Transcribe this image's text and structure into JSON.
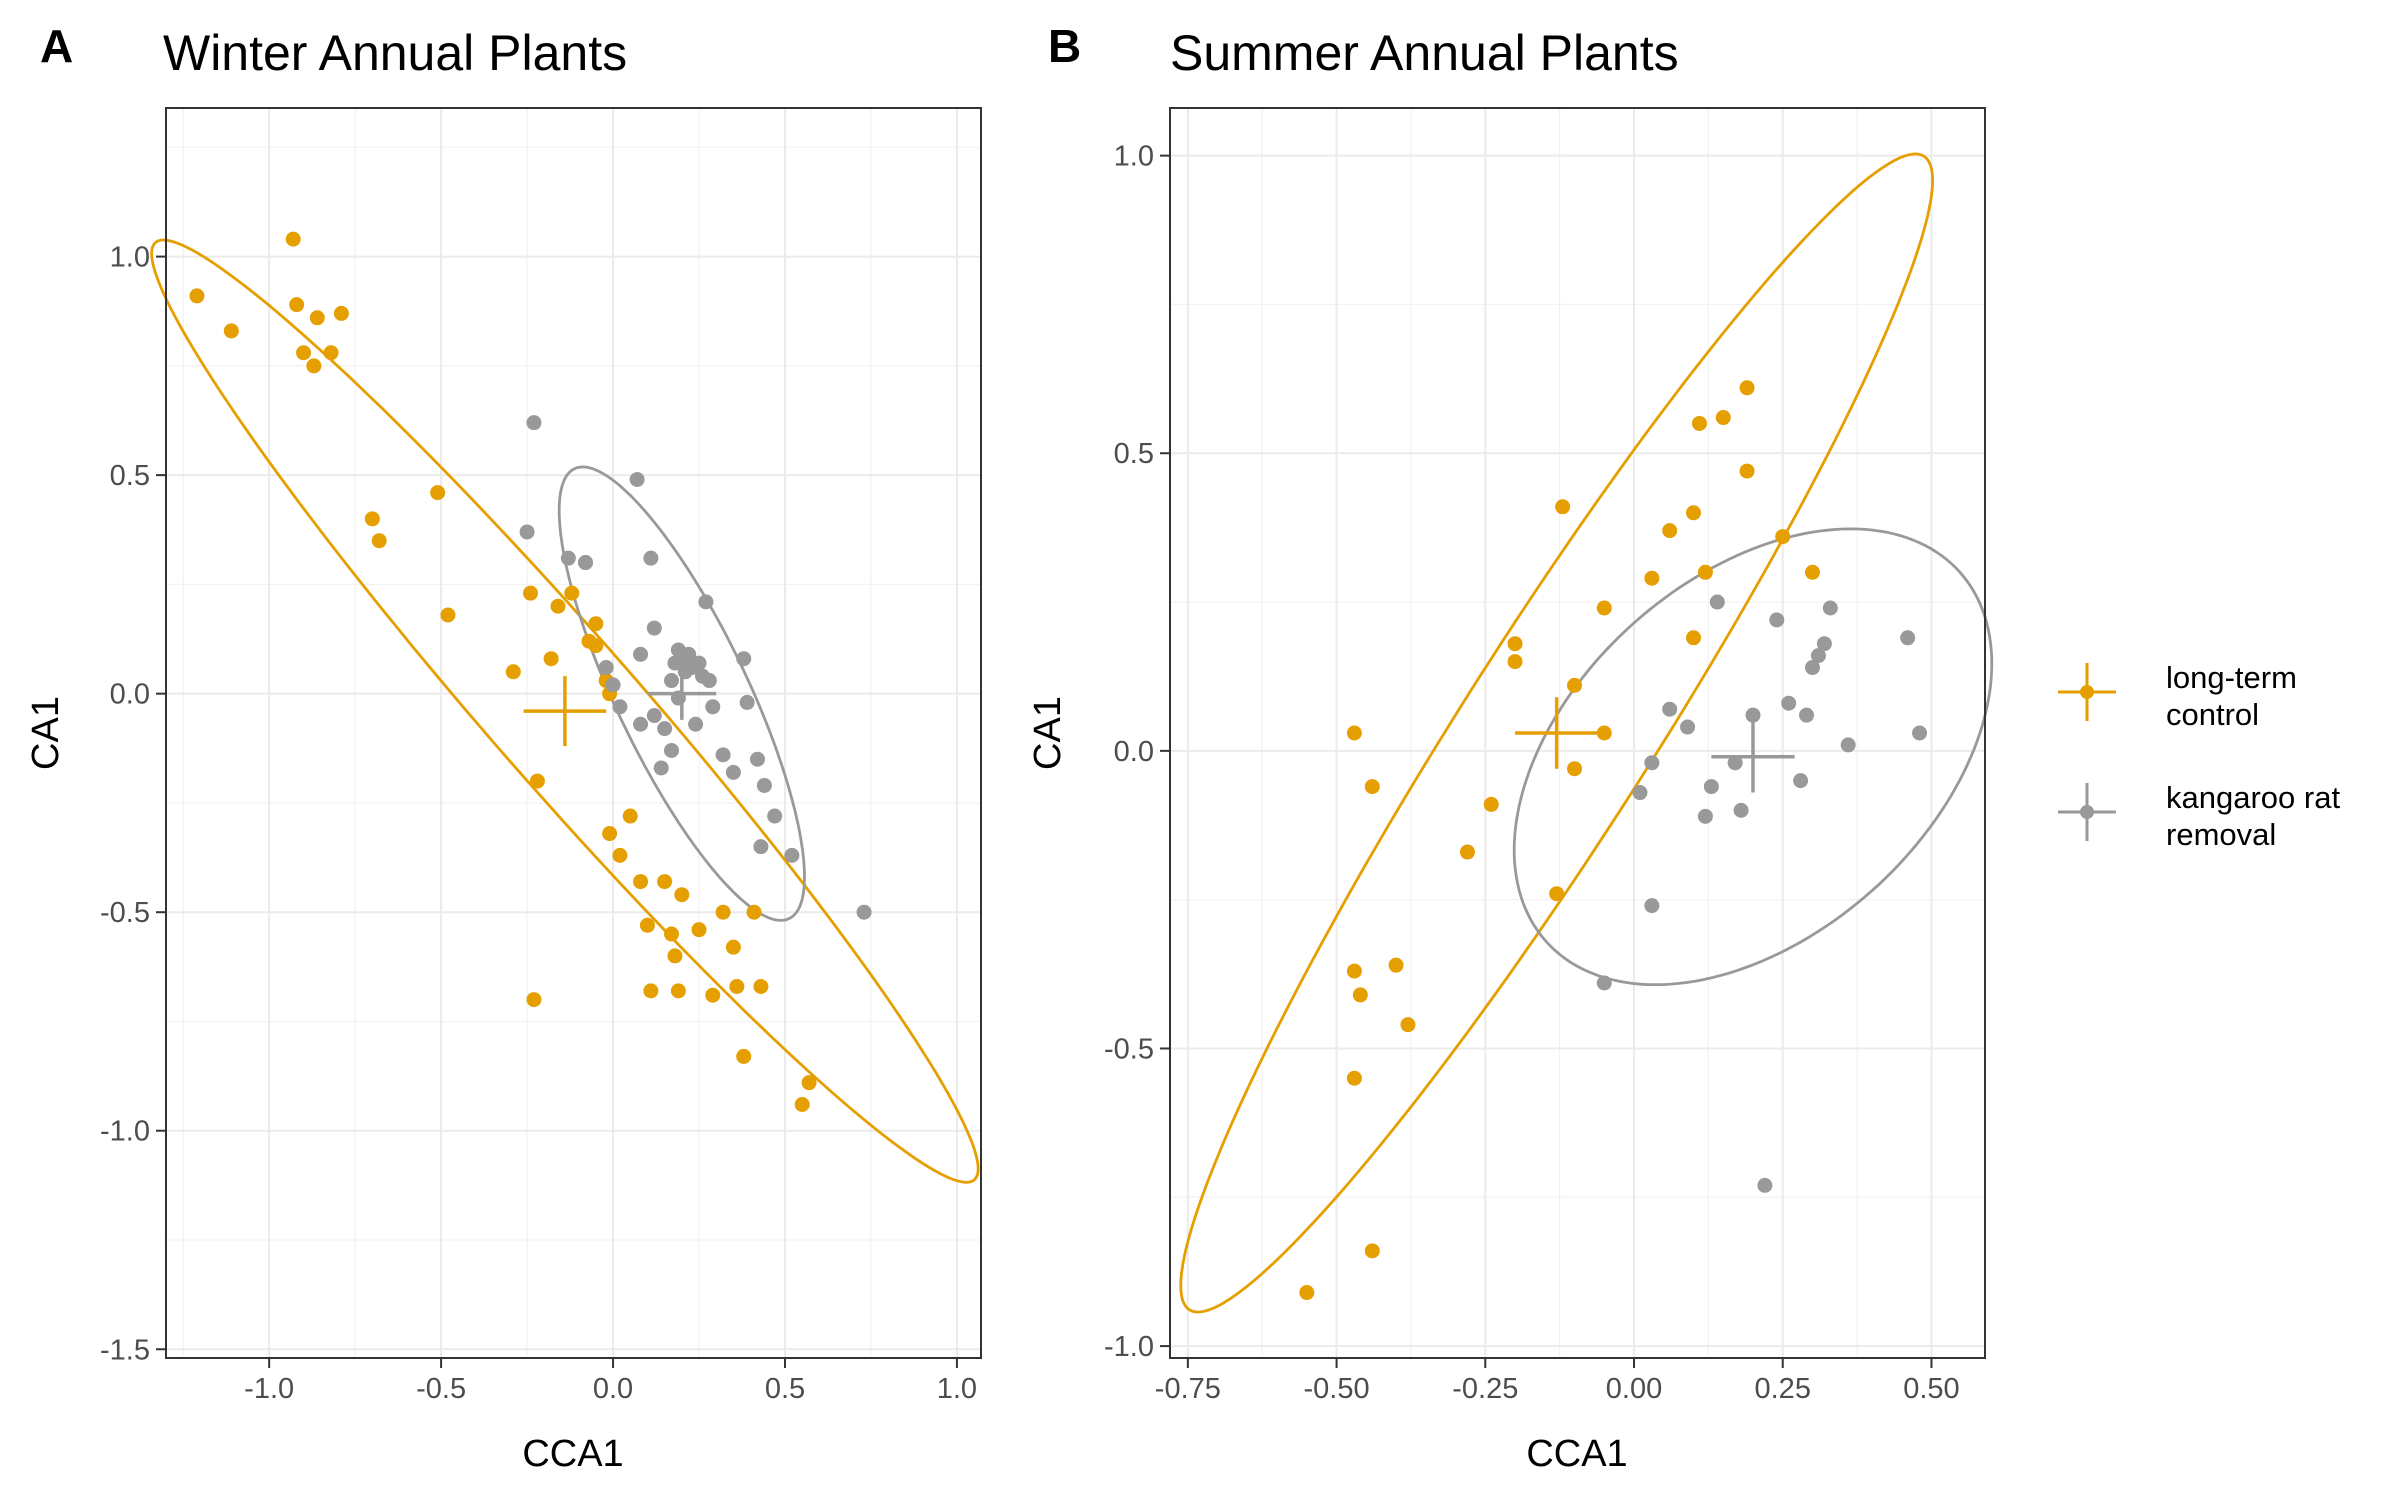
{
  "legend": {
    "items": [
      {
        "label_lines": [
          "long-term",
          "control"
        ],
        "color": "#E69F00"
      },
      {
        "label_lines": [
          "kangaroo rat",
          "removal"
        ],
        "color": "#999999"
      }
    ]
  },
  "chart_data": [
    {
      "type": "scatter",
      "panel_label": "A",
      "title": "Winter Annual Plants",
      "xlabel": "CCA1",
      "ylabel": "CA1",
      "xlim": [
        -1.3,
        1.07
      ],
      "ylim": [
        -1.52,
        1.34
      ],
      "x_ticks": [
        -1.0,
        -0.5,
        0.0,
        0.5,
        1.0
      ],
      "x_tick_labels": [
        "-1.0",
        "-0.5",
        "0.0",
        "0.5",
        "1.0"
      ],
      "y_ticks": [
        -1.5,
        -1.0,
        -0.5,
        0.0,
        0.5,
        1.0
      ],
      "y_tick_labels": [
        "-1.5",
        "-1.0",
        "-0.5",
        "0.0",
        "0.5",
        "1.0"
      ],
      "grid": true,
      "series": [
        {
          "name": "long-term control",
          "color": "#E69F00",
          "points": [
            [
              -1.21,
              0.91
            ],
            [
              -1.11,
              0.83
            ],
            [
              -0.93,
              1.04
            ],
            [
              -0.92,
              0.89
            ],
            [
              -0.9,
              0.78
            ],
            [
              -0.87,
              0.75
            ],
            [
              -0.86,
              0.86
            ],
            [
              -0.82,
              0.78
            ],
            [
              -0.79,
              0.87
            ],
            [
              -0.7,
              0.4
            ],
            [
              -0.68,
              0.35
            ],
            [
              -0.51,
              0.46
            ],
            [
              -0.48,
              0.18
            ],
            [
              -0.29,
              0.05
            ],
            [
              -0.24,
              0.23
            ],
            [
              -0.22,
              -0.2
            ],
            [
              -0.23,
              -0.7
            ],
            [
              -0.18,
              0.08
            ],
            [
              -0.16,
              0.2
            ],
            [
              -0.12,
              0.23
            ],
            [
              -0.08,
              0.3
            ],
            [
              -0.07,
              0.12
            ],
            [
              -0.05,
              0.16
            ],
            [
              -0.05,
              0.11
            ],
            [
              -0.02,
              0.03
            ],
            [
              -0.01,
              0.0
            ],
            [
              -0.01,
              -0.32
            ],
            [
              0.02,
              -0.37
            ],
            [
              0.05,
              -0.28
            ],
            [
              0.08,
              -0.43
            ],
            [
              0.1,
              -0.53
            ],
            [
              0.11,
              -0.68
            ],
            [
              0.15,
              -0.43
            ],
            [
              0.17,
              -0.55
            ],
            [
              0.18,
              -0.6
            ],
            [
              0.19,
              -0.68
            ],
            [
              0.2,
              -0.46
            ],
            [
              0.25,
              -0.54
            ],
            [
              0.29,
              -0.69
            ],
            [
              0.32,
              -0.5
            ],
            [
              0.35,
              -0.58
            ],
            [
              0.36,
              -0.67
            ],
            [
              0.38,
              -0.83
            ],
            [
              0.41,
              -0.5
            ],
            [
              0.43,
              -0.67
            ],
            [
              0.55,
              -0.94
            ],
            [
              0.57,
              -0.89
            ]
          ],
          "centroid": {
            "x": -0.14,
            "y": -0.04,
            "x_err": 0.12,
            "y_err": 0.08
          },
          "ellipse": {
            "center": [
              -0.14,
              -0.04
            ],
            "semi_major": 1.603,
            "semi_minor": 0.192,
            "angle_deg": -41.8
          }
        },
        {
          "name": "kangaroo rat removal",
          "color": "#999999",
          "points": [
            [
              -0.23,
              0.62
            ],
            [
              -0.25,
              0.37
            ],
            [
              -0.13,
              0.31
            ],
            [
              -0.08,
              0.3
            ],
            [
              -0.02,
              0.06
            ],
            [
              0.0,
              0.02
            ],
            [
              0.02,
              -0.03
            ],
            [
              0.07,
              0.49
            ],
            [
              0.08,
              0.09
            ],
            [
              0.08,
              -0.07
            ],
            [
              0.11,
              0.31
            ],
            [
              0.12,
              0.15
            ],
            [
              0.12,
              -0.05
            ],
            [
              0.14,
              -0.17
            ],
            [
              0.15,
              -0.08
            ],
            [
              0.17,
              0.03
            ],
            [
              0.17,
              -0.13
            ],
            [
              0.18,
              0.07
            ],
            [
              0.19,
              0.1
            ],
            [
              0.19,
              -0.01
            ],
            [
              0.2,
              0.08
            ],
            [
              0.21,
              0.05
            ],
            [
              0.22,
              0.09
            ],
            [
              0.23,
              0.06
            ],
            [
              0.24,
              -0.07
            ],
            [
              0.25,
              0.07
            ],
            [
              0.26,
              0.04
            ],
            [
              0.27,
              0.21
            ],
            [
              0.28,
              0.03
            ],
            [
              0.29,
              -0.03
            ],
            [
              0.32,
              -0.14
            ],
            [
              0.35,
              -0.18
            ],
            [
              0.38,
              0.08
            ],
            [
              0.39,
              -0.02
            ],
            [
              0.42,
              -0.15
            ],
            [
              0.43,
              -0.35
            ],
            [
              0.44,
              -0.21
            ],
            [
              0.47,
              -0.28
            ],
            [
              0.52,
              -0.37
            ],
            [
              0.73,
              -0.5
            ]
          ],
          "centroid": {
            "x": 0.2,
            "y": 0.0,
            "x_err": 0.1,
            "y_err": 0.06
          },
          "ellipse": {
            "center": [
              0.2,
              0.0
            ],
            "semi_major": 0.603,
            "semi_minor": 0.181,
            "angle_deg": -57.7
          }
        }
      ]
    },
    {
      "type": "scatter",
      "panel_label": "B",
      "title": "Summer Annual Plants",
      "xlabel": "CCA1",
      "ylabel": "CA1",
      "xlim": [
        -0.78,
        0.59
      ],
      "ylim": [
        -1.02,
        1.08
      ],
      "x_ticks": [
        -0.75,
        -0.5,
        -0.25,
        0.0,
        0.25,
        0.5
      ],
      "x_tick_labels": [
        "-0.75",
        "-0.50",
        "-0.25",
        "0.00",
        "0.25",
        "0.50"
      ],
      "y_ticks": [
        -1.0,
        -0.5,
        0.0,
        0.5,
        1.0
      ],
      "y_tick_labels": [
        "-1.0",
        "-0.5",
        "0.0",
        "0.5",
        "1.0"
      ],
      "grid": true,
      "series": [
        {
          "name": "long-term control",
          "color": "#E69F00",
          "points": [
            [
              -0.55,
              -0.91
            ],
            [
              -0.47,
              0.03
            ],
            [
              -0.47,
              -0.37
            ],
            [
              -0.47,
              -0.55
            ],
            [
              -0.46,
              -0.41
            ],
            [
              -0.44,
              -0.06
            ],
            [
              -0.44,
              -0.84
            ],
            [
              -0.4,
              -0.36
            ],
            [
              -0.38,
              -0.46
            ],
            [
              -0.28,
              -0.17
            ],
            [
              -0.24,
              -0.09
            ],
            [
              -0.2,
              0.18
            ],
            [
              -0.2,
              0.15
            ],
            [
              -0.13,
              -0.24
            ],
            [
              -0.12,
              0.41
            ],
            [
              -0.1,
              0.11
            ],
            [
              -0.1,
              -0.03
            ],
            [
              -0.05,
              0.24
            ],
            [
              -0.05,
              0.03
            ],
            [
              0.03,
              0.29
            ],
            [
              0.06,
              0.37
            ],
            [
              0.1,
              0.4
            ],
            [
              0.1,
              0.19
            ],
            [
              0.11,
              0.55
            ],
            [
              0.12,
              0.3
            ],
            [
              0.15,
              0.56
            ],
            [
              0.19,
              0.61
            ],
            [
              0.19,
              0.47
            ],
            [
              0.25,
              0.36
            ],
            [
              0.3,
              0.3
            ]
          ],
          "centroid": {
            "x": -0.13,
            "y": 0.03,
            "x_err": 0.07,
            "y_err": 0.06
          },
          "ellipse": {
            "center": [
              -0.13,
              0.03
            ],
            "semi_major": 1.149,
            "semi_minor": 0.16,
            "angle_deg": 57.5
          }
        },
        {
          "name": "kangaroo rat removal",
          "color": "#999999",
          "points": [
            [
              -0.05,
              -0.39
            ],
            [
              0.01,
              -0.07
            ],
            [
              0.03,
              -0.02
            ],
            [
              0.03,
              -0.26
            ],
            [
              0.06,
              0.07
            ],
            [
              0.09,
              0.04
            ],
            [
              0.12,
              -0.11
            ],
            [
              0.13,
              -0.06
            ],
            [
              0.14,
              0.25
            ],
            [
              0.17,
              -0.02
            ],
            [
              0.18,
              -0.1
            ],
            [
              0.2,
              0.06
            ],
            [
              0.22,
              -0.73
            ],
            [
              0.24,
              0.22
            ],
            [
              0.26,
              0.08
            ],
            [
              0.28,
              -0.05
            ],
            [
              0.29,
              0.06
            ],
            [
              0.3,
              0.14
            ],
            [
              0.31,
              0.16
            ],
            [
              0.32,
              0.18
            ],
            [
              0.33,
              0.24
            ],
            [
              0.36,
              0.01
            ],
            [
              0.46,
              0.19
            ],
            [
              0.48,
              0.03
            ]
          ],
          "centroid": {
            "x": 0.2,
            "y": -0.01,
            "x_err": 0.07,
            "y_err": 0.06
          },
          "ellipse": {
            "center": [
              0.2,
              -0.01
            ],
            "semi_major": 0.466,
            "semi_minor": 0.301,
            "angle_deg": 41.7
          }
        }
      ]
    }
  ]
}
